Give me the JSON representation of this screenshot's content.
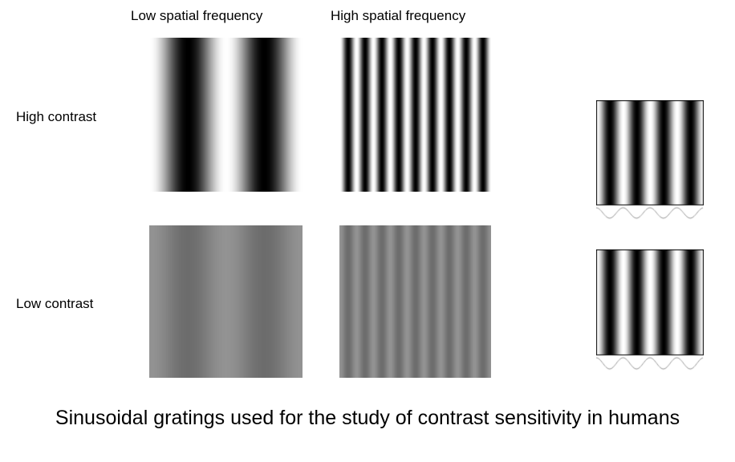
{
  "headers": {
    "low_freq": "Low spatial frequency",
    "high_freq": "High spatial frequency"
  },
  "rows": {
    "high_contrast": "High contrast",
    "low_contrast": "Low contrast"
  },
  "caption": "Sinusoidal gratings used for the study of contrast sensitivity in humans",
  "gratings": [
    {
      "id": "low-freq-high-contrast",
      "cycles": 2,
      "contrast": 1.0
    },
    {
      "id": "high-freq-high-contrast",
      "cycles": 9,
      "contrast": 1.0
    },
    {
      "id": "low-freq-low-contrast",
      "cycles": 2,
      "contrast": 0.15
    },
    {
      "id": "high-freq-low-contrast",
      "cycles": 9,
      "contrast": 0.15
    }
  ],
  "side_panels": [
    {
      "id": "side-top",
      "cycles": 4
    },
    {
      "id": "side-bottom",
      "cycles": 4
    }
  ],
  "colors": {
    "background": "#ffffff",
    "mid_gray": "#808080"
  }
}
